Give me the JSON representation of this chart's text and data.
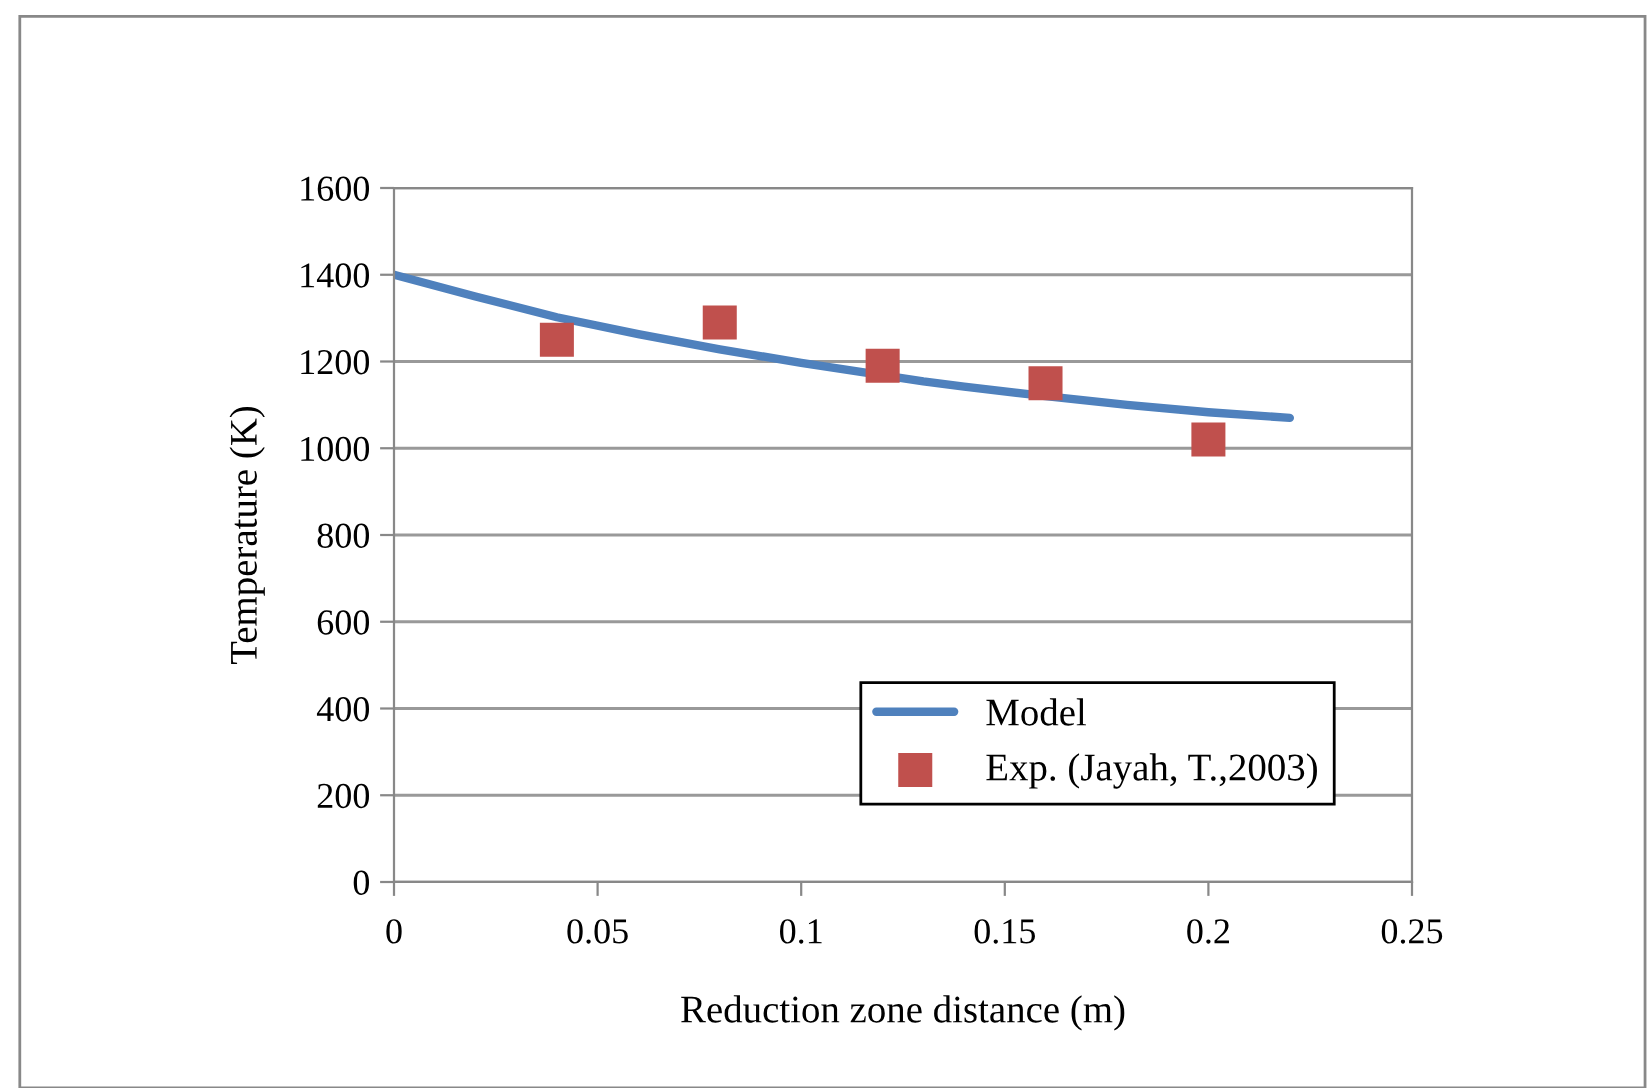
{
  "chart_data": {
    "type": "line",
    "xlabel": "Reduction zone distance (m)",
    "ylabel": "Temperature (K)",
    "xlim": [
      0,
      0.25
    ],
    "xticks": [
      0,
      0.05,
      0.1,
      0.15,
      0.2,
      0.25
    ],
    "ylim": [
      0,
      1600
    ],
    "yticks": [
      0,
      200,
      400,
      600,
      800,
      1000,
      1200,
      1400,
      1600
    ],
    "grid": "y",
    "legend": "bottom right",
    "series": [
      {
        "name": "Model",
        "color": "#4f81bd",
        "marker": "none",
        "line_style": "solid",
        "x": [
          0,
          0.02,
          0.04,
          0.06,
          0.08,
          0.1,
          0.13,
          0.14,
          0.16,
          0.18,
          0.2,
          0.22
        ],
        "values": [
          1400,
          1350,
          1302,
          1263,
          1228,
          1197,
          1154,
          1142,
          1120,
          1100,
          1083,
          1070
        ]
      },
      {
        "name": "Exp. (Jayah, T.,2003)",
        "type": "scatter",
        "color": "#c0504d",
        "marker": "square",
        "x": [
          0.04,
          0.08,
          0.12,
          0.16,
          0.2
        ],
        "values": [
          1250,
          1290,
          1190,
          1150,
          1020
        ]
      }
    ]
  }
}
